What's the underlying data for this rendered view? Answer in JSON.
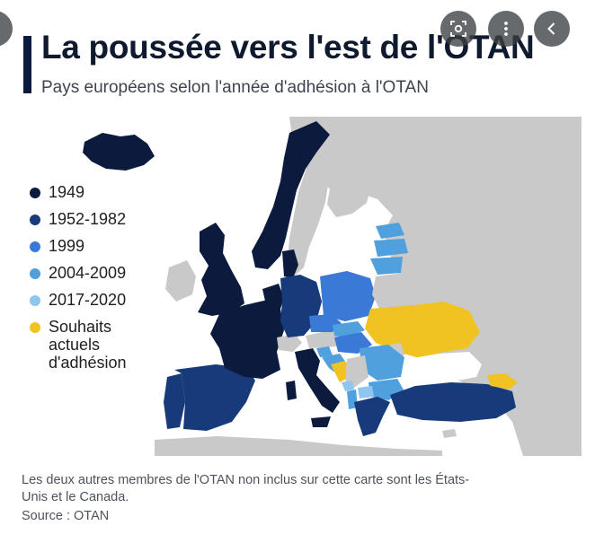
{
  "title": "La poussée vers l'est de l'OTAN",
  "subtitle": "Pays européens selon l'année d'adhésion à l'OTAN",
  "legend": [
    {
      "label": "1949",
      "color": "#0c1b3d"
    },
    {
      "label": "1952-1982",
      "color": "#173a7a"
    },
    {
      "label": "1999",
      "color": "#3a7ad6"
    },
    {
      "label": "2004-2009",
      "color": "#4fa0dc"
    },
    {
      "label": "2017-2020",
      "color": "#8ec6ef"
    },
    {
      "label": "Souhaits actuels d'adhésion",
      "color": "#f0c323"
    }
  ],
  "colors": {
    "non_member": "#c9c9c9",
    "title_bar": "#0c1b3d"
  },
  "footnote": "Les deux autres membres de l'OTAN non inclus sur cette carte sont les États-Unis et le Canada.",
  "source": "Source : OTAN",
  "overlay_buttons": [
    {
      "icon": "lens-icon"
    },
    {
      "icon": "more-vertical-icon"
    },
    {
      "icon": "chevron-left-icon"
    }
  ]
}
